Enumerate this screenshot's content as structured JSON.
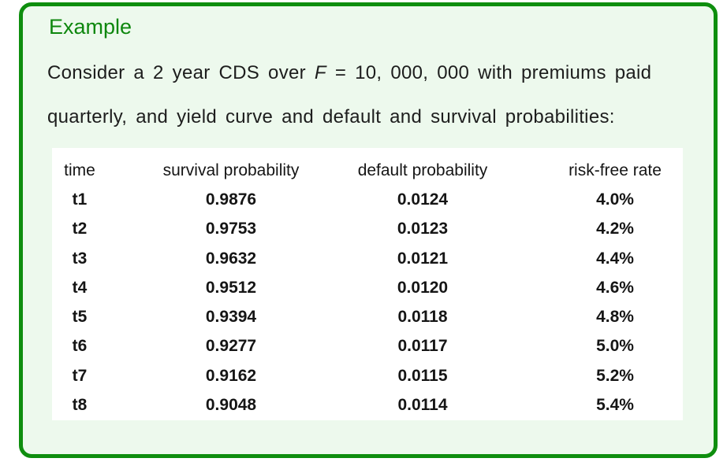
{
  "block": {
    "title": "Example",
    "body": {
      "line1_pre": "Consider a 2 year CDS over",
      "math_var": "F",
      "math_rest": "= 10, 000, 000",
      "line1_post": "with premiums paid",
      "line2": "quarterly, and yield curve and default and survival probabilities:"
    },
    "table": {
      "headers": [
        "time",
        "survival probability",
        "default probability",
        "risk-free rate"
      ],
      "rows": [
        [
          "t1",
          "0.9876",
          "0.0124",
          "4.0%"
        ],
        [
          "t2",
          "0.9753",
          "0.0123",
          "4.2%"
        ],
        [
          "t3",
          "0.9632",
          "0.0121",
          "4.4%"
        ],
        [
          "t4",
          "0.9512",
          "0.0120",
          "4.6%"
        ],
        [
          "t5",
          "0.9394",
          "0.0118",
          "4.8%"
        ],
        [
          "t6",
          "0.9277",
          "0.0117",
          "5.0%"
        ],
        [
          "t7",
          "0.9162",
          "0.0115",
          "5.2%"
        ],
        [
          "t8",
          "0.9048",
          "0.0114",
          "5.4%"
        ]
      ]
    }
  },
  "colors": {
    "border_green": "#0e8e0e",
    "title_green": "#0e870e",
    "block_bg": "#edf9ed",
    "table_bg": "#ffffff",
    "text_color": "#1d1d1d"
  }
}
